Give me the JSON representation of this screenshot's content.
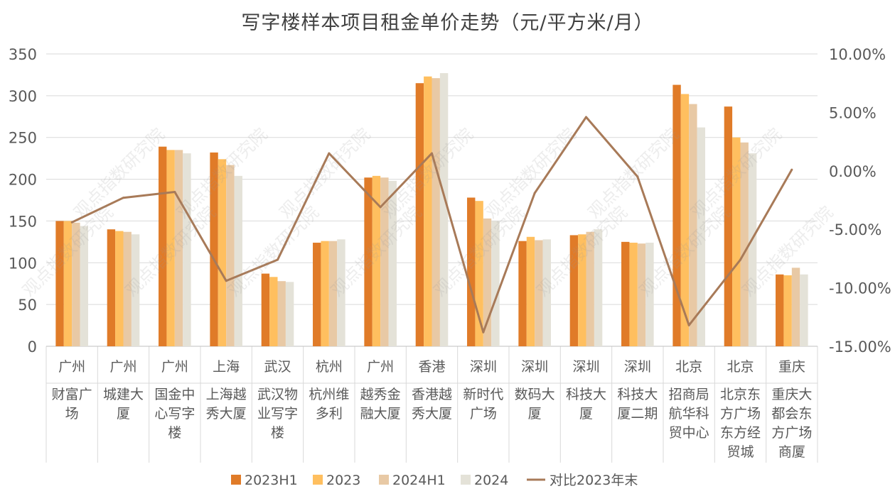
{
  "chart_data": {
    "type": "bar",
    "title": "写字楼样本项目租金单价走势（元/平方米/月）",
    "categories": [
      {
        "city": "广州",
        "name": "财富广场"
      },
      {
        "city": "广州",
        "name": "城建大厦"
      },
      {
        "city": "广州",
        "name": "国金中心写字楼"
      },
      {
        "city": "上海",
        "name": "上海越秀大厦"
      },
      {
        "city": "武汉",
        "name": "武汉物业写字楼"
      },
      {
        "city": "杭州",
        "name": "杭州维多利"
      },
      {
        "city": "广州",
        "name": "越秀金融大厦"
      },
      {
        "city": "香港",
        "name": "香港越秀大厦"
      },
      {
        "city": "深圳",
        "name": "新时代广场"
      },
      {
        "city": "深圳",
        "name": "数码大厦"
      },
      {
        "city": "深圳",
        "name": "科技大厦"
      },
      {
        "city": "深圳",
        "name": "科技大厦二期"
      },
      {
        "city": "北京",
        "name": "招商局航华科贸中心"
      },
      {
        "city": "北京",
        "name": "北京东方广场东方经贸城"
      },
      {
        "city": "重庆",
        "name": "重庆大都会东方广场商厦"
      }
    ],
    "category_labels": [
      [
        "财富广",
        "场"
      ],
      [
        "城建大",
        "厦"
      ],
      [
        "国金中",
        "心写字",
        "楼"
      ],
      [
        "上海越",
        "秀大厦"
      ],
      [
        "武汉物",
        "业写字",
        "楼"
      ],
      [
        "杭州维",
        "多利"
      ],
      [
        "越秀金",
        "融大厦"
      ],
      [
        "香港越",
        "秀大厦"
      ],
      [
        "新时代",
        "广场"
      ],
      [
        "数码大",
        "厦"
      ],
      [
        "科技大",
        "厦"
      ],
      [
        "科技大",
        "厦二期"
      ],
      [
        "招商局",
        "航华科",
        "贸中心"
      ],
      [
        "北京东",
        "方广场",
        "东方经",
        "贸城"
      ],
      [
        "重庆大",
        "都会东",
        "方广场",
        "商厦"
      ]
    ],
    "series": [
      {
        "name": "2023H1",
        "color": "#E07B28",
        "values": [
          150,
          140,
          239,
          232,
          87,
          124,
          202,
          315,
          178,
          126,
          133,
          125,
          313,
          287,
          86
        ]
      },
      {
        "name": "2023",
        "color": "#FFBF5F",
        "values": [
          150,
          138,
          235,
          224,
          83,
          126,
          204,
          323,
          174,
          131,
          134,
          124,
          302,
          250,
          85
        ]
      },
      {
        "name": "2024H1",
        "color": "#E8C9A5",
        "values": [
          148,
          137,
          235,
          217,
          78,
          126,
          202,
          321,
          153,
          127,
          137,
          123,
          290,
          244,
          94
        ]
      },
      {
        "name": "2024",
        "color": "#E4E2D8",
        "values": [
          144,
          134,
          231,
          204,
          77,
          128,
          198,
          327,
          150,
          128,
          140,
          124,
          262,
          231,
          86
        ]
      }
    ],
    "line_series": {
      "name": "对比2023年末",
      "color": "#A87A58",
      "values": [
        -4.4,
        -2.3,
        -1.8,
        -9.4,
        -7.6,
        1.5,
        -3.1,
        1.5,
        -13.8,
        -1.9,
        4.6,
        -0.5,
        -13.2,
        -7.6,
        0.1
      ]
    },
    "y_left": {
      "min": 0,
      "max": 350,
      "ticks": [
        "0",
        "50",
        "100",
        "150",
        "200",
        "250",
        "300",
        "350"
      ]
    },
    "y_right": {
      "min": -15,
      "max": 10,
      "ticks": [
        "-15.00%",
        "-10.00%",
        "-5.00%",
        "0.00%",
        "5.00%",
        "10.00%"
      ]
    },
    "grid": true,
    "legend_position": "bottom",
    "watermark": "观点指数研究院"
  }
}
